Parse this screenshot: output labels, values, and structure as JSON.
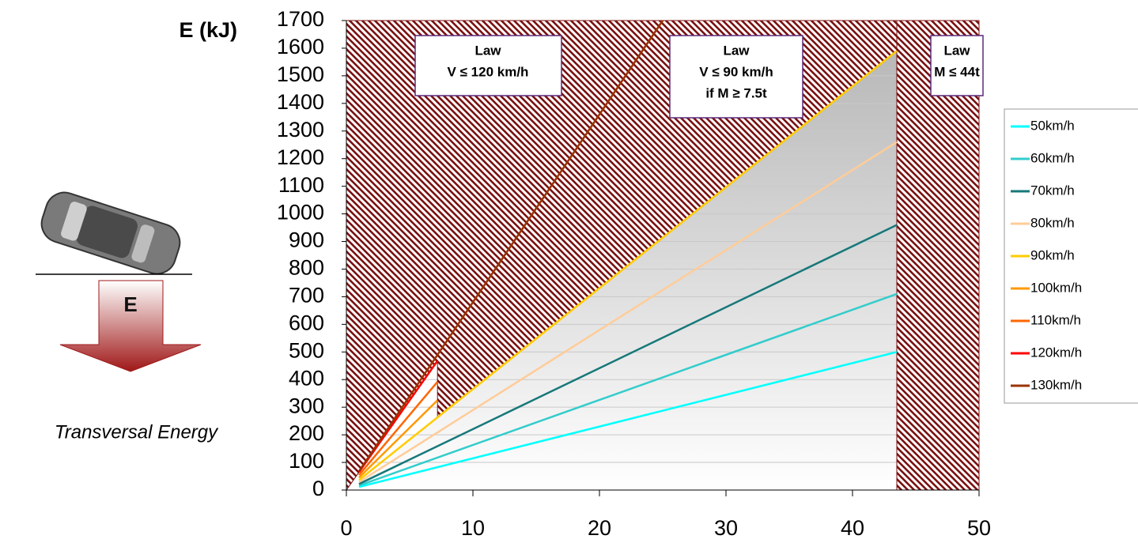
{
  "chart_data": {
    "type": "line",
    "y_label": "E (kJ)",
    "side_label": "Transversal Energy",
    "arrow_label": "E",
    "annotations": [
      [
        "Law",
        "V ≤ 120 km/h"
      ],
      [
        "Law",
        "V ≤ 90 km/h",
        "if M ≥ 7.5t"
      ],
      [
        "Law",
        "M ≤ 44t"
      ]
    ],
    "xlim": [
      0,
      50
    ],
    "xticks": [
      0,
      10,
      20,
      30,
      40,
      50
    ],
    "ylim": [
      0,
      1700
    ],
    "yticks": [
      0,
      100,
      200,
      300,
      400,
      500,
      600,
      700,
      800,
      900,
      1000,
      1100,
      1200,
      1300,
      1400,
      1500,
      1600,
      1700
    ],
    "grid": true,
    "series": [
      {
        "name": "50km/h",
        "color": "#00ffff",
        "x": [
          1,
          43.5
        ],
        "values": [
          11.5,
          500
        ]
      },
      {
        "name": "60km/h",
        "color": "#33cccc",
        "x": [
          1,
          43.5
        ],
        "values": [
          16.3,
          710
        ]
      },
      {
        "name": "70km/h",
        "color": "#17787a",
        "x": [
          1,
          43.5
        ],
        "values": [
          22,
          960
        ]
      },
      {
        "name": "80km/h",
        "color": "#ffcc99",
        "x": [
          1,
          43.5
        ],
        "values": [
          29,
          1260
        ]
      },
      {
        "name": "90km/h",
        "color": "#ffcc00",
        "x": [
          1,
          43.5
        ],
        "values": [
          36.5,
          1590
        ]
      },
      {
        "name": "100km/h",
        "color": "#ff9900",
        "x": [
          1,
          7.2
        ],
        "values": [
          45,
          325
        ]
      },
      {
        "name": "110km/h",
        "color": "#ff6600",
        "x": [
          1,
          7.2
        ],
        "values": [
          54.5,
          392
        ]
      },
      {
        "name": "120km/h",
        "color": "#ff0000",
        "x": [
          1,
          7.2
        ],
        "values": [
          65,
          468
        ]
      },
      {
        "name": "130km/h",
        "color": "#993300",
        "x": [
          1,
          25
        ],
        "values": [
          68,
          1700
        ]
      }
    ]
  }
}
